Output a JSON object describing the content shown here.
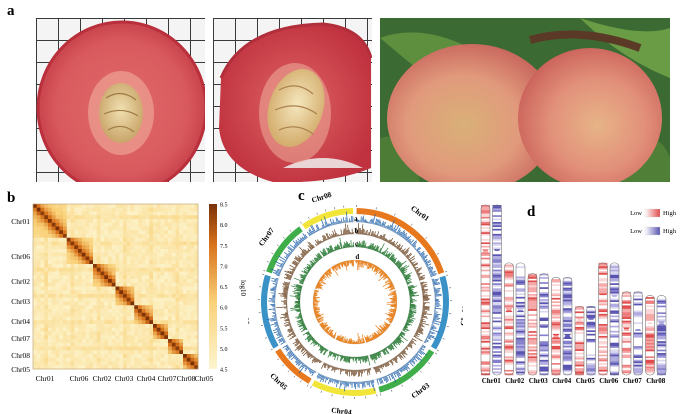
{
  "figure": {
    "panel_labels": {
      "a": "a",
      "b": "b",
      "c": "c",
      "d": "d"
    }
  },
  "panel_a": {
    "photos": [
      "peach-half-cut",
      "peach-half-with-stone",
      "peaches-on-branch"
    ]
  },
  "chart_data": [
    {
      "id": "b",
      "type": "heatmap",
      "y_labels": [
        "Chr01",
        "Chr06",
        "Chr02",
        "Chr03",
        "Chr04",
        "Chr07",
        "Chr08",
        "Chr05"
      ],
      "x_labels": [
        "Chr01",
        "Chr06",
        "Chr02",
        "Chr03",
        "Chr04",
        "Chr07",
        "Chr08",
        "Chr05"
      ],
      "colorbar": {
        "label": "log10",
        "ticks": [
          "8.5",
          "8.0",
          "7.5",
          "7.0",
          "6.5",
          "6.0",
          "5.5",
          "5.0",
          "4.5"
        ],
        "min": 4.5,
        "max": 8.5
      },
      "relative_sizes": [
        1.9,
        1.25,
        1.2,
        1.1,
        1.0,
        0.85,
        0.8,
        0.72
      ]
    },
    {
      "id": "c",
      "type": "circos",
      "chromosomes": [
        {
          "name": "Chr01",
          "color": "#e8781e",
          "size": 47
        },
        {
          "name": "Chr02",
          "color": "#3a92c7",
          "size": 31
        },
        {
          "name": "Chr03",
          "color": "#3fae4a",
          "size": 28
        },
        {
          "name": "Chr04",
          "color": "#f2e53a",
          "size": 27
        },
        {
          "name": "Chr05",
          "color": "#e8781e",
          "size": 19
        },
        {
          "name": "Chr06",
          "color": "#3a92c7",
          "size": 31
        },
        {
          "name": "Chr07",
          "color": "#3fae4a",
          "size": 23
        },
        {
          "name": "Chr08",
          "color": "#f2e53a",
          "size": 22
        }
      ],
      "tracks": [
        {
          "id": "a",
          "color": "#1d5fa8"
        },
        {
          "id": "b",
          "color": "#6b4422"
        },
        {
          "id": "c",
          "color": "#2e7d3a"
        },
        {
          "id": "d",
          "color": "#e8872a"
        }
      ]
    },
    {
      "id": "d",
      "type": "ideogram",
      "legend": [
        {
          "low": "Low",
          "high": "High",
          "color": "#e04b4b"
        },
        {
          "low": "Low",
          "high": "High",
          "color": "#5a55b0"
        }
      ],
      "chromosomes": [
        {
          "name": "Chr01",
          "length": 47,
          "centromere": 0.27
        },
        {
          "name": "Chr02",
          "length": 31,
          "centromere": 0.42
        },
        {
          "name": "Chr03",
          "length": 28,
          "centromere": 0.55
        },
        {
          "name": "Chr04",
          "length": 27,
          "centromere": 0.6
        },
        {
          "name": "Chr05",
          "length": 19,
          "centromere": 0.2
        },
        {
          "name": "Chr06",
          "length": 31,
          "centromere": 0.3
        },
        {
          "name": "Chr07",
          "length": 23,
          "centromere": 0.45
        },
        {
          "name": "Chr08",
          "length": 22,
          "centromere": 0.35
        }
      ]
    }
  ]
}
